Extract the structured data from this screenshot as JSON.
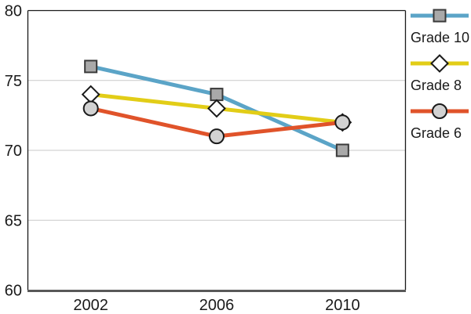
{
  "chart_data": {
    "type": "line",
    "title": "",
    "xlabel": "",
    "ylabel": "",
    "x_categories": [
      "2002",
      "2006",
      "2010"
    ],
    "series": [
      {
        "name": "Grade 10",
        "values": [
          76,
          74,
          70
        ],
        "line_color": "#5BA4C7",
        "marker": "square",
        "marker_fill": "#A9A9A9",
        "marker_stroke": "#3A3A3A"
      },
      {
        "name": "Grade 8",
        "values": [
          74,
          73,
          72
        ],
        "line_color": "#E2CD17",
        "marker": "diamond",
        "marker_fill": "#FFFFFF",
        "marker_stroke": "#1A1A1A"
      },
      {
        "name": "Grade 6",
        "values": [
          73,
          71,
          72
        ],
        "line_color": "#E0532A",
        "marker": "circle",
        "marker_fill": "#D2D2D2",
        "marker_stroke": "#1A1A1A"
      }
    ],
    "ylim": [
      60,
      80
    ],
    "yticks": [
      60,
      65,
      70,
      75,
      80
    ],
    "gridlines": [
      65,
      70,
      75
    ],
    "grid_on": true,
    "legend_position": "right",
    "grid_color": "#C9C9C9",
    "axis_color": "#1A1A1A",
    "bottom_axis_color": "#595959",
    "text_color": "#1A1A1A"
  }
}
